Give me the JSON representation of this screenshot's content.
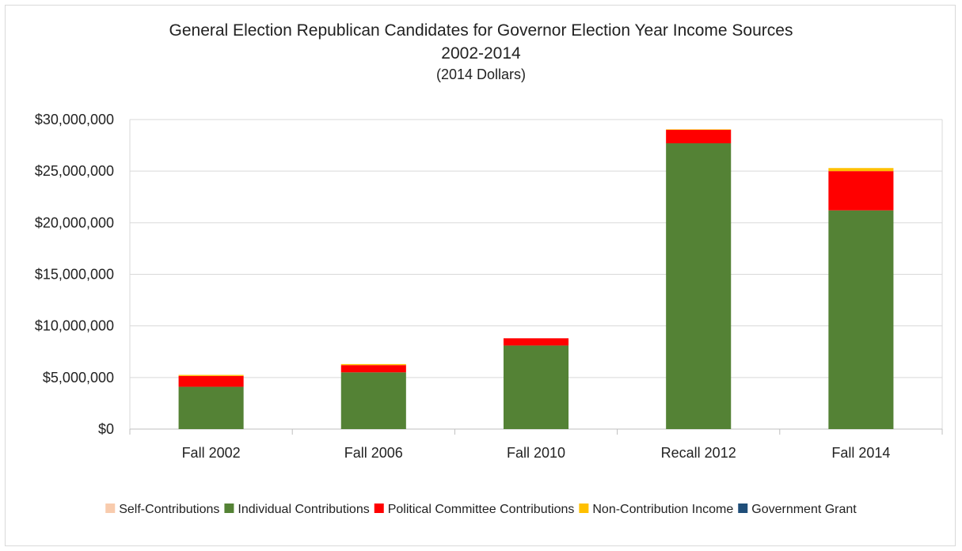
{
  "chart_data": {
    "type": "bar",
    "stacked": true,
    "title": "General Election Republican Candidates for Governor Election Year Income Sources",
    "subtitle": "2002-2014",
    "subtitle2": "(2014 Dollars)",
    "xlabel": "",
    "ylabel": "",
    "ylim": [
      0,
      30000000
    ],
    "yticks": [
      "$0",
      "$5,000,000",
      "$10,000,000",
      "$15,000,000",
      "$20,000,000",
      "$25,000,000",
      "$30,000,000"
    ],
    "ytick_values": [
      0,
      5000000,
      10000000,
      15000000,
      20000000,
      25000000,
      30000000
    ],
    "grid": true,
    "legend_position": "bottom",
    "categories": [
      "Fall 2002",
      "Fall 2006",
      "Fall 2010",
      "Recall 2012",
      "Fall 2014"
    ],
    "series": [
      {
        "name": "Self-Contributions",
        "color": "#f8cbad",
        "values": [
          0,
          0,
          0,
          0,
          0
        ]
      },
      {
        "name": "Individual Contributions",
        "color": "#548235",
        "values": [
          4100000,
          5500000,
          8100000,
          27700000,
          21200000
        ]
      },
      {
        "name": "Political Committee Contributions",
        "color": "#ff0000",
        "values": [
          1050000,
          700000,
          700000,
          1300000,
          3800000
        ]
      },
      {
        "name": "Non-Contribution Income",
        "color": "#ffc000",
        "values": [
          100000,
          100000,
          0,
          50000,
          300000
        ]
      },
      {
        "name": "Government Grant",
        "color": "#1f4e79",
        "values": [
          0,
          0,
          0,
          0,
          0
        ]
      }
    ]
  }
}
